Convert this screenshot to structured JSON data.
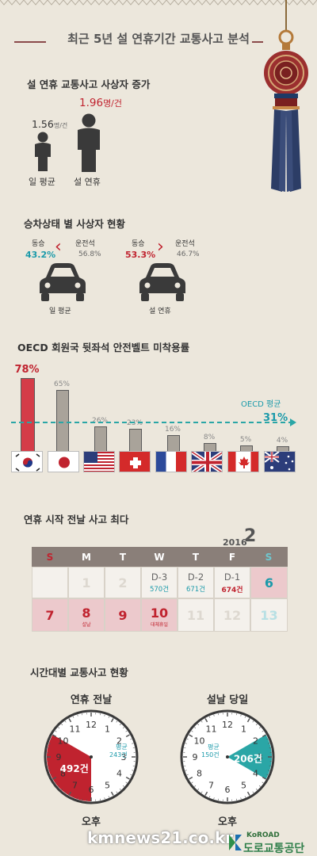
{
  "title": "최근 5년 설 연휴기간 교통사고 분석",
  "section1": {
    "heading": "설 연휴 교통사고 사상자 증가",
    "avg_value": "1.56",
    "avg_unit": "명/건",
    "avg_label": "일 평균",
    "holiday_value": "1.96",
    "holiday_unit": "명/건",
    "holiday_label": "설 연휴"
  },
  "section2": {
    "heading": "승차상태 별 사상자 현황",
    "left": {
      "passenger_label": "동승",
      "passenger_pct": "43.2%",
      "driver_label": "운전석",
      "driver_pct": "56.8%",
      "car_label": "일 평균"
    },
    "right": {
      "passenger_label": "동승",
      "passenger_pct": "53.3%",
      "driver_label": "운전석",
      "driver_pct": "46.7%",
      "car_label": "설 연휴"
    }
  },
  "chart_data": {
    "type": "bar",
    "title": "OECD 회원국 뒷좌석 안전벨트 미착용률",
    "categories": [
      "Korea",
      "Japan",
      "USA",
      "Switzerland",
      "France",
      "UK",
      "Canada",
      "Australia"
    ],
    "values": [
      78,
      65,
      26,
      23,
      16,
      8,
      5,
      4
    ],
    "value_labels": [
      "78%",
      "65%",
      "26%",
      "23%",
      "16%",
      "8%",
      "5%",
      "4%"
    ],
    "ylim": [
      0,
      80
    ],
    "reference_line": {
      "label": "OECD 평균",
      "value": 31,
      "value_label": "31%"
    },
    "highlight_color": "#d43c48",
    "bar_color": "#a9a39a",
    "line_color": "#2aa6a6"
  },
  "calendar": {
    "heading": "연휴 시작 전날 사고 최다",
    "year": "2016",
    "month": "2",
    "days_header": [
      "S",
      "M",
      "T",
      "W",
      "T",
      "F",
      "S"
    ],
    "row1": [
      {
        "day": "",
        "top": "",
        "sub": ""
      },
      {
        "day": "1",
        "top": "",
        "sub": ""
      },
      {
        "day": "2",
        "top": "",
        "sub": ""
      },
      {
        "day": "",
        "top": "D-3",
        "sub": "570건"
      },
      {
        "day": "",
        "top": "D-2",
        "sub": "671건"
      },
      {
        "day": "",
        "top": "D-1",
        "sub": "674건"
      },
      {
        "day": "6",
        "top": "",
        "sub": ""
      }
    ],
    "row2": [
      {
        "day": "7",
        "note": ""
      },
      {
        "day": "8",
        "note": "설날"
      },
      {
        "day": "9",
        "note": ""
      },
      {
        "day": "10",
        "note": "대체휴일"
      },
      {
        "day": "11",
        "note": ""
      },
      {
        "day": "12",
        "note": ""
      },
      {
        "day": "13",
        "note": ""
      }
    ]
  },
  "clocks": {
    "heading": "시간대별 교통사고 현황",
    "left": {
      "title": "연휴 전날",
      "avg_label": "평균",
      "avg_value": "243건",
      "value": "492건",
      "ampm": "오후",
      "color": "#c0232f"
    },
    "right": {
      "title": "설날 당일",
      "avg_label": "평균",
      "avg_value": "150건",
      "value": "206건",
      "ampm": "오후",
      "color": "#2aa6a6"
    },
    "numbers": [
      "12",
      "1",
      "2",
      "3",
      "4",
      "5",
      "6",
      "7",
      "8",
      "9",
      "10",
      "11"
    ]
  },
  "footer": {
    "watermark": "kmnews21.co.kr",
    "logo_en": "KoROAD",
    "logo_ko": "도로교통공단"
  }
}
